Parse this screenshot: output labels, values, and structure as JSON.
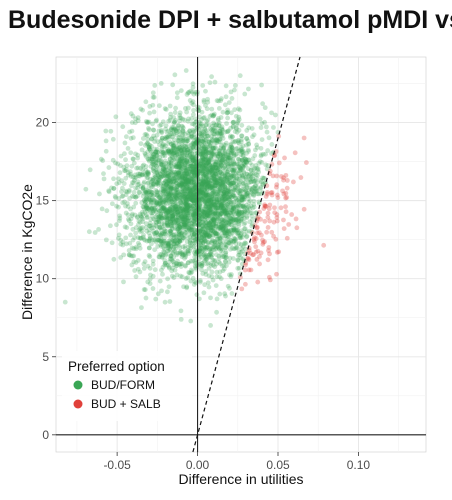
{
  "chart_data": {
    "type": "scatter",
    "title": "Budesonide DPI + salbutamol pMDI vs",
    "xlabel": "Difference in utilities",
    "ylabel": "Difference in KgCO2e",
    "xlim": [
      -0.088,
      0.142
    ],
    "ylim": [
      -1.1,
      24.2
    ],
    "x_ticks": [
      -0.05,
      0.0,
      0.05,
      0.1
    ],
    "x_tick_labels": [
      "-0.05",
      "0.00",
      "0.05",
      "0.10"
    ],
    "y_ticks": [
      0,
      5,
      10,
      15,
      20
    ],
    "y_tick_labels": [
      "0",
      "5",
      "10",
      "15",
      "20"
    ],
    "grid": true,
    "reference_lines": {
      "vertical_x": 0,
      "horizontal_y": 0
    },
    "threshold_line": {
      "style": "dashed",
      "slope_kgco2e_per_utility": 380,
      "intercept": 0
    },
    "legend": {
      "title": "Preferred option",
      "placement": "bottom-left",
      "entries": [
        {
          "label": "BUD/FORM",
          "color": "#3aa655"
        },
        {
          "label": "BUD + SALB",
          "color": "#e0403a"
        }
      ]
    },
    "series": [
      {
        "name": "BUD/FORM",
        "color": "#3aa655",
        "x_mean": 0.0,
        "x_sd": 0.021,
        "y_mean": 15.5,
        "y_sd": 2.5,
        "rule": "y > 380*x"
      },
      {
        "name": "BUD + SALB",
        "color": "#e0403a",
        "x_mean": 0.0,
        "x_sd": 0.021,
        "y_mean": 15.5,
        "y_sd": 2.5,
        "rule": "y <= 380*x"
      }
    ]
  }
}
